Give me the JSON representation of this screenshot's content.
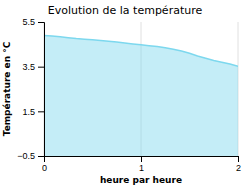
{
  "chart_data": {
    "type": "area",
    "title": "Evolution de la température",
    "x_label": "heure par heure",
    "y_label": "Température en °C",
    "x": [
      0.0,
      0.083,
      0.167,
      0.25,
      0.333,
      0.417,
      0.5,
      0.583,
      0.667,
      0.75,
      0.833,
      0.917,
      1.0,
      1.083,
      1.167,
      1.25,
      1.333,
      1.417,
      1.5,
      1.583,
      1.667,
      1.75,
      1.833,
      1.917,
      2.0
    ],
    "values": [
      4.9,
      4.87,
      4.84,
      4.8,
      4.76,
      4.73,
      4.7,
      4.67,
      4.64,
      4.6,
      4.56,
      4.52,
      4.48,
      4.44,
      4.4,
      4.35,
      4.28,
      4.2,
      4.1,
      3.98,
      3.88,
      3.78,
      3.7,
      3.62,
      3.52
    ],
    "color": "#7dd8ee",
    "xlim": [
      0,
      2
    ],
    "ylim": [
      -0.5,
      5.5
    ],
    "xticks": [
      0,
      1,
      2
    ],
    "yticks": [
      {
        "value": -0.5,
        "label": "−0.5"
      },
      1.5,
      3.5,
      5.5
    ],
    "grid": "x"
  }
}
